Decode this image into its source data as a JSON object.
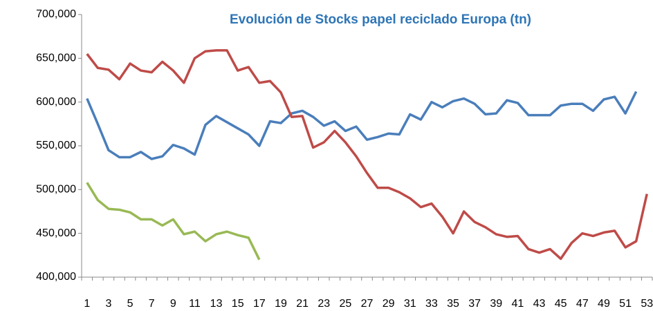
{
  "chart_data": {
    "type": "line",
    "title": "Evolución de Stocks papel reciclado Europa (tn)",
    "categories": [
      1,
      null,
      3,
      null,
      5,
      null,
      7,
      null,
      9,
      null,
      11,
      null,
      13,
      null,
      15,
      null,
      17,
      null,
      19,
      null,
      21,
      null,
      23,
      null,
      25,
      null,
      27,
      null,
      29,
      null,
      31,
      null,
      33,
      null,
      35,
      null,
      37,
      null,
      39,
      null,
      41,
      null,
      43,
      null,
      45,
      null,
      47,
      null,
      49,
      null,
      51,
      null,
      53
    ],
    "series": [
      {
        "color": "#4a7ebb",
        "values": [
          604000,
          575000,
          545000,
          537000,
          537000,
          543000,
          535000,
          538000,
          551000,
          547000,
          540000,
          574000,
          584000,
          577000,
          570000,
          563000,
          550000,
          578000,
          576000,
          587000,
          590000,
          583000,
          573000,
          578000,
          567000,
          572000,
          557000,
          560000,
          564000,
          563000,
          586000,
          580000,
          600000,
          594000,
          601000,
          604000,
          598000,
          586000,
          587000,
          602000,
          599000,
          585000,
          585000,
          585000,
          596000,
          598000,
          598000,
          590000,
          603000,
          606000,
          587000,
          612000,
          null
        ]
      },
      {
        "color": "#be4b48",
        "values": [
          655000,
          639000,
          637000,
          626000,
          644000,
          636000,
          634000,
          646000,
          636000,
          622000,
          650000,
          658000,
          659000,
          659000,
          636000,
          640000,
          622000,
          624000,
          611000,
          583000,
          584000,
          548000,
          554000,
          567000,
          554000,
          538000,
          519000,
          502000,
          502000,
          497000,
          490000,
          480000,
          484000,
          469000,
          450000,
          475000,
          463000,
          457000,
          449000,
          446000,
          447000,
          432000,
          428000,
          432000,
          421000,
          439000,
          450000,
          447000,
          451000,
          453000,
          434000,
          441000,
          495000
        ]
      },
      {
        "color": "#98b954",
        "values": [
          508000,
          488000,
          478000,
          477000,
          474000,
          466000,
          466000,
          459000,
          466000,
          449000,
          452000,
          441000,
          449000,
          452000,
          448000,
          445000,
          420000,
          null,
          null,
          null,
          null,
          null,
          null,
          null,
          null,
          null,
          null,
          null,
          null,
          null,
          null,
          null,
          null,
          null,
          null,
          null,
          null,
          null,
          null,
          null,
          null,
          null,
          null,
          null,
          null,
          null,
          null,
          null,
          null,
          null,
          null,
          null,
          null
        ]
      }
    ],
    "ylim": [
      400000,
      700000
    ],
    "yticks": [
      {
        "value": 400000,
        "label": "400,000"
      },
      {
        "value": 450000,
        "label": "450,000"
      },
      {
        "value": 500000,
        "label": "500,000"
      },
      {
        "value": 550000,
        "label": "550,000"
      },
      {
        "value": 600000,
        "label": "600,000"
      },
      {
        "value": 650000,
        "label": "650,000"
      },
      {
        "value": 700000,
        "label": "700,000"
      }
    ],
    "grid": false
  }
}
